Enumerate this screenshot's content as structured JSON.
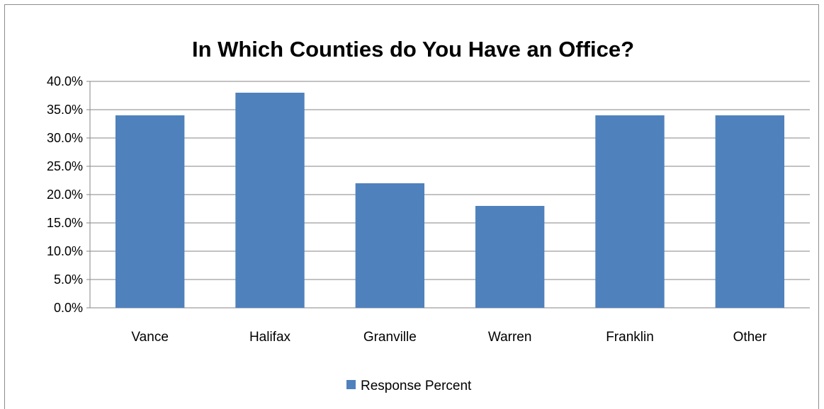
{
  "chart_data": {
    "type": "bar",
    "title": "In Which Counties do You Have an Office?",
    "categories": [
      "Vance",
      "Halifax",
      "Granville",
      "Warren",
      "Franklin",
      "Other"
    ],
    "series": [
      {
        "name": "Response Percent",
        "values": [
          34.0,
          38.0,
          22.0,
          18.0,
          34.0,
          34.0
        ]
      }
    ],
    "ylim": [
      0,
      40
    ],
    "yticks": [
      "0.0%",
      "5.0%",
      "10.0%",
      "15.0%",
      "20.0%",
      "25.0%",
      "30.0%",
      "35.0%",
      "40.0%"
    ],
    "grid": true,
    "legend_position": "bottom",
    "colors": {
      "bar": "#4f81bd",
      "grid": "#868686",
      "axis": "#868686"
    }
  }
}
